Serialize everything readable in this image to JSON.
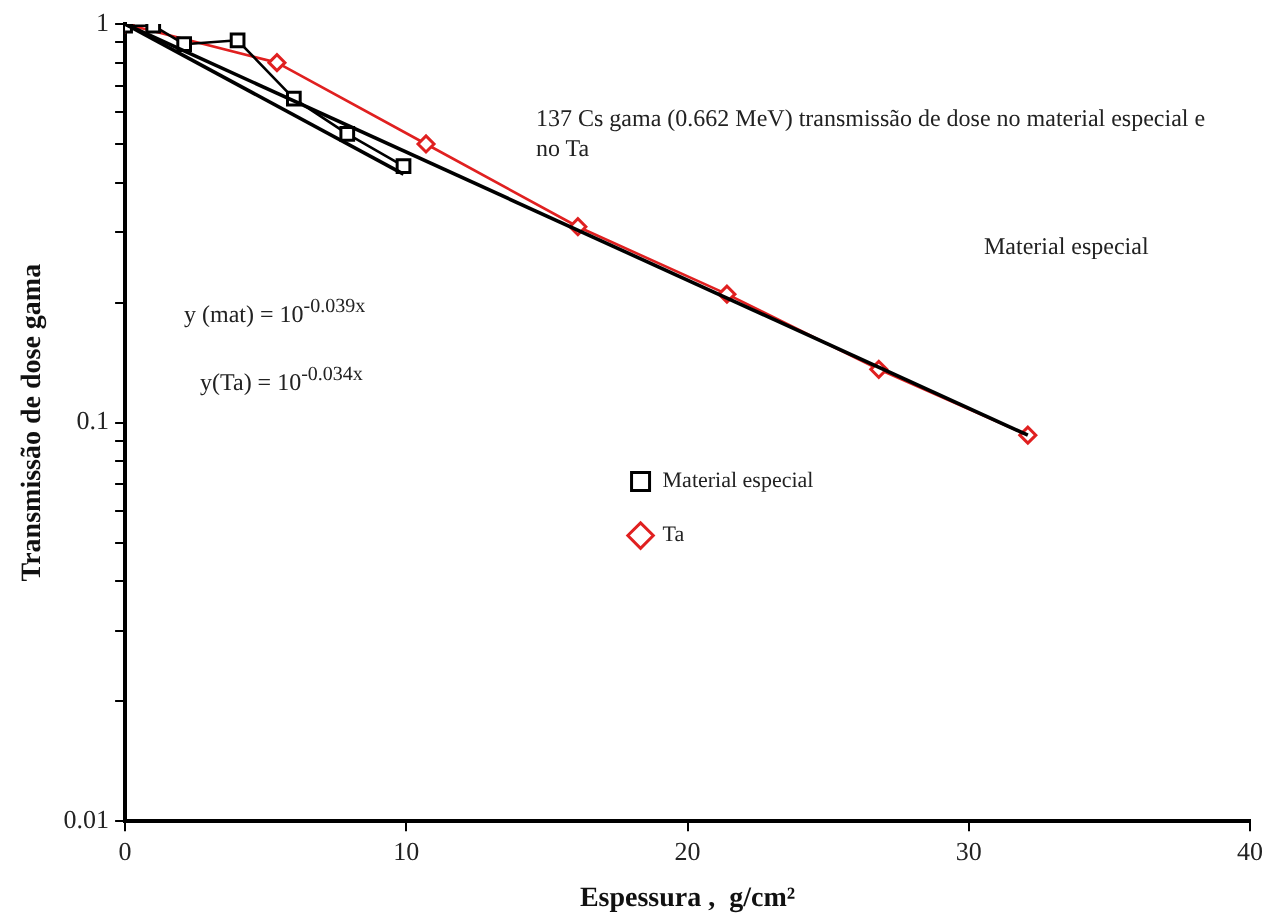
{
  "chart_data": {
    "type": "line",
    "xlabel": "Espessura ,  g/cm²",
    "ylabel": "Transmissão de dose gama",
    "annotations": [
      "137 Cs gama (0.662 MeV) transmissão de dose no material especial e no Ta",
      "Material especial",
      "y (mat) = 10$^{-0.039x}$",
      "y(Ta) = 10$^{-0.034x}$"
    ],
    "series": [
      {
        "name": "Material especial",
        "color": "#000000",
        "marker": "square",
        "x": [
          0,
          1.0,
          2.1,
          4.0,
          6.0,
          7.9,
          9.9
        ],
        "values": [
          0.99,
          0.99,
          0.89,
          0.91,
          0.65,
          0.53,
          0.44
        ]
      },
      {
        "name": "Ta",
        "color": "#e02020",
        "marker": "diamond",
        "x": [
          0,
          5.4,
          10.7,
          16.1,
          21.4,
          26.8,
          32.1
        ],
        "values": [
          1.0,
          0.8,
          0.5,
          0.31,
          0.21,
          0.136,
          0.093
        ]
      },
      {
        "color": "#000000",
        "marker": "none",
        "x": [
          0,
          9.9
        ],
        "values": [
          1.0,
          0.42
        ]
      },
      {
        "color": "#000000",
        "marker": "none",
        "x": [
          0,
          32.1
        ],
        "values": [
          1.0,
          0.093
        ]
      }
    ],
    "xlim": [
      0,
      40
    ],
    "xticks": [
      0,
      10,
      20,
      30,
      40
    ],
    "ylim": [
      0.01,
      1
    ],
    "yticks": [
      0.01,
      {
        "value": 0.02,
        "label": null
      },
      {
        "value": 0.03,
        "label": null
      },
      {
        "value": 0.04,
        "label": null
      },
      {
        "value": 0.05,
        "label": null
      },
      {
        "value": 0.06,
        "label": null
      },
      {
        "value": 0.07,
        "label": null
      },
      {
        "value": 0.08,
        "label": null
      },
      {
        "value": 0.09,
        "label": null
      },
      0.1,
      {
        "value": 0.2,
        "label": null
      },
      {
        "value": 0.3,
        "label": null
      },
      {
        "value": 0.4,
        "label": null
      },
      {
        "value": 0.5,
        "label": null
      },
      {
        "value": 0.6,
        "label": null
      },
      {
        "value": 0.7,
        "label": null
      },
      {
        "value": 0.8,
        "label": null
      },
      {
        "value": 0.9,
        "label": null
      },
      1
    ],
    "log": "y",
    "grid": false,
    "legend": "center",
    "line_style": "solid"
  }
}
